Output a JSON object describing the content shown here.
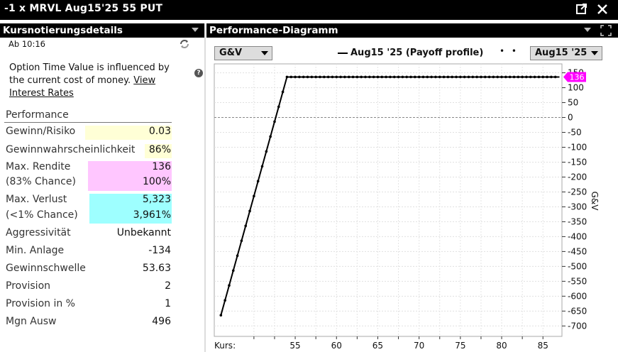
{
  "window": {
    "title": "-1 x MRVL Aug15'25 55 PUT"
  },
  "left_panel": {
    "header": "Kursnotierungsdetails",
    "time": "Ab 10:16",
    "info_text": "Option Time Value is influenced by the current cost of money. ",
    "info_link": "View Interest Rates",
    "section_label": "Performance",
    "rows": [
      {
        "label": "Gewinn/Risiko",
        "value": "0.03"
      },
      {
        "label": "Gewinnwahrscheinlichkeit",
        "value": "86%"
      },
      {
        "label": "Max. Rendite",
        "value": "136"
      },
      {
        "label": "(83% Chance)",
        "value": "100%"
      },
      {
        "label": "Max. Verlust",
        "value": "5,323"
      },
      {
        "label": "(<1% Chance)",
        "value": "3,961%"
      },
      {
        "label": "Aggressivität",
        "value": "Unbekannt"
      },
      {
        "label": "Min. Anlage",
        "value": "-134"
      },
      {
        "label": "Gewinnschwelle",
        "value": "53.63"
      },
      {
        "label": "Provision",
        "value": "2"
      },
      {
        "label": "Provision in %",
        "value": "1"
      },
      {
        "label": "Mgn Ausw",
        "value": "496"
      }
    ],
    "highlight_colors": {
      "yellow": "#ffffd6",
      "pink": "#ffc6ff",
      "cyan": "#9effff"
    }
  },
  "right_panel": {
    "header": "Performance-Diagramm",
    "metric_dropdown": "G&V",
    "legend_label": "Aug15 '25 (Payoff profile)",
    "legend_dots": "• •",
    "expiry_dropdown": "Aug15 '25"
  },
  "chart_data": {
    "type": "line",
    "series": [
      {
        "name": "Aug15 '25 (Payoff profile)",
        "x": [
          46.0,
          47.0,
          48.0,
          49.0,
          50.0,
          51.0,
          52.0,
          53.0,
          54.0,
          55.0,
          56.0,
          58.0,
          60.0,
          62.0,
          64.0,
          66.0,
          68.0,
          70.0,
          72.0,
          74.0,
          76.0,
          78.0,
          80.0,
          82.0,
          84.0,
          86.0,
          87.0
        ],
        "y": [
          -664,
          -564,
          -464,
          -364,
          -264,
          -164,
          -64,
          36,
          136,
          136,
          136,
          136,
          136,
          136,
          136,
          136,
          136,
          136,
          136,
          136,
          136,
          136,
          136,
          136,
          136,
          136,
          136
        ]
      }
    ],
    "x_label": "Kurs:",
    "x_ticks": [
      55,
      60,
      65,
      70,
      75,
      80,
      85
    ],
    "xlim": [
      45.2,
      87.3
    ],
    "y_label": "G&V",
    "y_ticks": [
      150,
      100,
      50,
      0,
      -50,
      -100,
      -150,
      -200,
      -250,
      -300,
      -350,
      -400,
      -450,
      -500,
      -550,
      -600,
      -650,
      -700
    ],
    "ylim": [
      -735,
      180
    ],
    "marker_label": "136",
    "marker_value": 136,
    "marker_color": "#ff00ff",
    "grid": true,
    "zero_line": 0
  }
}
